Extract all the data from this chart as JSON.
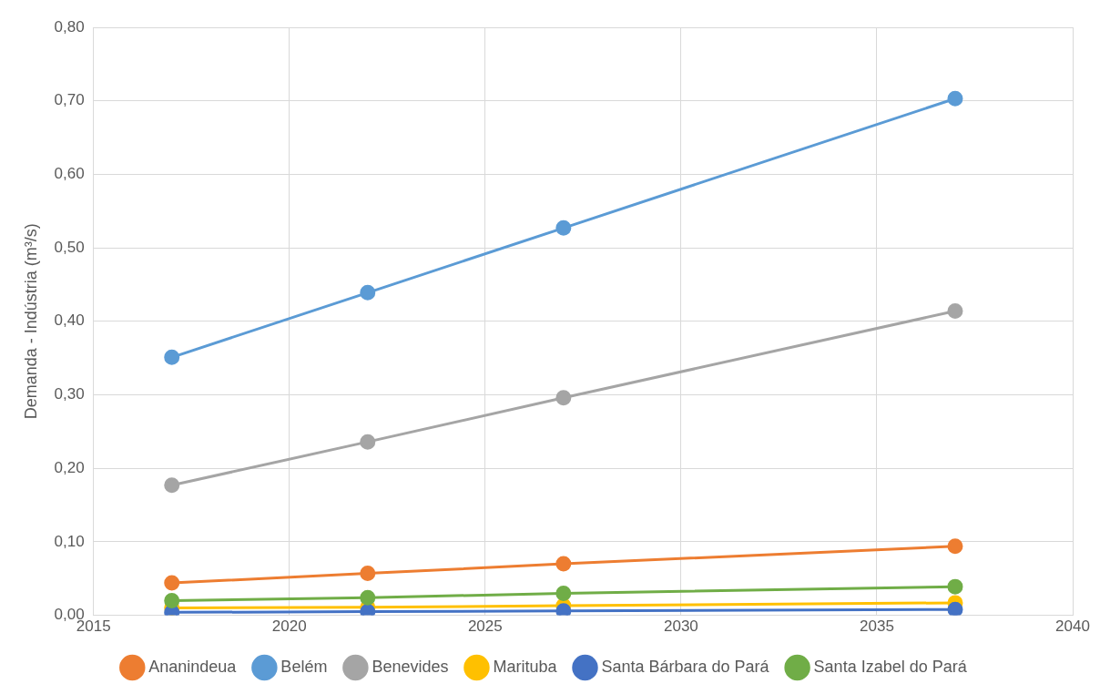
{
  "chart_data": {
    "type": "line",
    "ylabel": "Demanda - Indústria (m³/s)",
    "x": [
      2017,
      2022,
      2027,
      2037
    ],
    "series": [
      {
        "name": "Ananindeua",
        "color": "#ed7d31",
        "values": [
          0.044,
          0.057,
          0.07,
          0.094
        ]
      },
      {
        "name": "Belém",
        "color": "#5b9bd5",
        "values": [
          0.351,
          0.439,
          0.527,
          0.703
        ]
      },
      {
        "name": "Benevides",
        "color": "#a5a5a5",
        "values": [
          0.177,
          0.236,
          0.296,
          0.414
        ]
      },
      {
        "name": "Marituba",
        "color": "#ffc000",
        "values": [
          0.01,
          0.011,
          0.013,
          0.017
        ]
      },
      {
        "name": "Santa Bárbara do Pará",
        "color": "#4472c4",
        "values": [
          0.004,
          0.005,
          0.006,
          0.008
        ]
      },
      {
        "name": "Santa Izabel do Pará",
        "color": "#70ad47",
        "values": [
          0.02,
          0.024,
          0.03,
          0.039
        ]
      }
    ],
    "xlim": [
      2015,
      2040
    ],
    "xticks": [
      2015,
      2020,
      2025,
      2030,
      2035,
      2040
    ],
    "ylim": [
      0,
      0.8
    ],
    "yticks": [
      {
        "value": 0,
        "label": "0,00"
      },
      {
        "value": 0.1,
        "label": "0,10"
      },
      {
        "value": 0.2,
        "label": "0,20"
      },
      {
        "value": 0.3,
        "label": "0,30"
      },
      {
        "value": 0.4,
        "label": "0,40"
      },
      {
        "value": 0.5,
        "label": "0,50"
      },
      {
        "value": 0.6,
        "label": "0,60"
      },
      {
        "value": 0.7,
        "label": "0,70"
      },
      {
        "value": 0.8,
        "label": "0,80"
      }
    ],
    "grid": true,
    "legend": "bottom",
    "marker": "circle",
    "line_style": "solid"
  }
}
